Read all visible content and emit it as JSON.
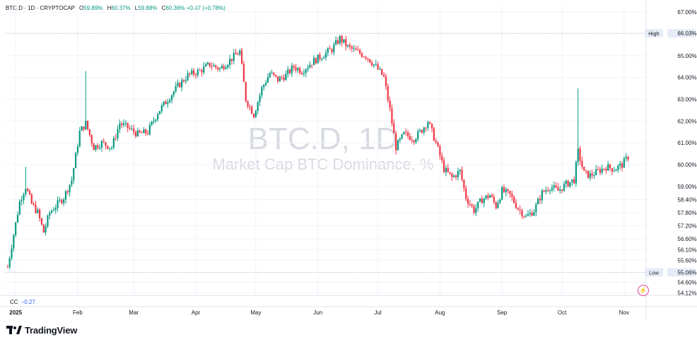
{
  "header": {
    "symbol": "BTC.D · 1D · CRYPTOCAP",
    "open_label": "O",
    "open": "59.89%",
    "high_label": "H",
    "high": "60.37%",
    "low_label": "L",
    "low": "59.88%",
    "close_label": "C",
    "close": "60.36%",
    "change": "+0.47 (+0.78%)"
  },
  "watermark": {
    "title": "BTC.D, 1D",
    "subtitle": "Market Cap BTC Dominance, %"
  },
  "indicator": {
    "name": "CC",
    "value": "−0.27"
  },
  "brand": {
    "name": "TradingView"
  },
  "colors": {
    "up": "#089981",
    "down": "#f23645",
    "grid": "#f0f3fa",
    "text": "#131722",
    "accent": "#2962ff"
  },
  "chart_data": {
    "type": "candlestick",
    "title": "BTC.D, 1D",
    "subtitle": "Market Cap BTC Dominance, %",
    "ylim": [
      54.0,
      67.3
    ],
    "y_ticks": [
      "67.00%",
      "66.03%",
      "65.00%",
      "64.00%",
      "63.00%",
      "62.00%",
      "61.00%",
      "60.00%",
      "59.00%",
      "58.40%",
      "57.80%",
      "57.20%",
      "56.60%",
      "56.10%",
      "55.60%",
      "55.06%",
      "54.60%",
      "54.12%"
    ],
    "x_ticks": [
      "2025",
      "Feb",
      "Mar",
      "Apr",
      "May",
      "Jun",
      "Jul",
      "Aug",
      "Sep",
      "Oct",
      "Nov"
    ],
    "high_marker": {
      "label": "High",
      "value": 66.03
    },
    "low_marker": {
      "label": "Low",
      "value": 55.06
    },
    "close_series": [
      {
        "date": "2024-12-28",
        "value": 55.3
      },
      {
        "date": "2024-12-31",
        "value": 56.8
      },
      {
        "date": "2025-01-03",
        "value": 58.3
      },
      {
        "date": "2025-01-06",
        "value": 59.0
      },
      {
        "date": "2025-01-09",
        "value": 58.2
      },
      {
        "date": "2025-01-12",
        "value": 57.8
      },
      {
        "date": "2025-01-15",
        "value": 56.9
      },
      {
        "date": "2025-01-18",
        "value": 57.8
      },
      {
        "date": "2025-01-21",
        "value": 58.1
      },
      {
        "date": "2025-01-25",
        "value": 58.5
      },
      {
        "date": "2025-01-29",
        "value": 59.3
      },
      {
        "date": "2025-02-02",
        "value": 61.5
      },
      {
        "date": "2025-02-05",
        "value": 61.9
      },
      {
        "date": "2025-02-09",
        "value": 60.8
      },
      {
        "date": "2025-02-13",
        "value": 61.0
      },
      {
        "date": "2025-02-18",
        "value": 60.8
      },
      {
        "date": "2025-02-22",
        "value": 61.9
      },
      {
        "date": "2025-02-26",
        "value": 61.7
      },
      {
        "date": "2025-03-03",
        "value": 61.4
      },
      {
        "date": "2025-03-08",
        "value": 61.5
      },
      {
        "date": "2025-03-13",
        "value": 62.4
      },
      {
        "date": "2025-03-18",
        "value": 63.0
      },
      {
        "date": "2025-03-23",
        "value": 63.6
      },
      {
        "date": "2025-03-28",
        "value": 64.1
      },
      {
        "date": "2025-04-03",
        "value": 64.3
      },
      {
        "date": "2025-04-08",
        "value": 64.6
      },
      {
        "date": "2025-04-13",
        "value": 64.4
      },
      {
        "date": "2025-04-18",
        "value": 64.8
      },
      {
        "date": "2025-04-23",
        "value": 65.2
      },
      {
        "date": "2025-04-26",
        "value": 63.0
      },
      {
        "date": "2025-04-30",
        "value": 62.3
      },
      {
        "date": "2025-05-04",
        "value": 63.5
      },
      {
        "date": "2025-05-08",
        "value": 64.2
      },
      {
        "date": "2025-05-12",
        "value": 63.9
      },
      {
        "date": "2025-05-16",
        "value": 64.1
      },
      {
        "date": "2025-05-20",
        "value": 64.5
      },
      {
        "date": "2025-05-24",
        "value": 64.3
      },
      {
        "date": "2025-05-29",
        "value": 64.7
      },
      {
        "date": "2025-06-03",
        "value": 65.0
      },
      {
        "date": "2025-06-08",
        "value": 65.3
      },
      {
        "date": "2025-06-12",
        "value": 65.8
      },
      {
        "date": "2025-06-16",
        "value": 65.4
      },
      {
        "date": "2025-06-20",
        "value": 65.2
      },
      {
        "date": "2025-06-25",
        "value": 65.0
      },
      {
        "date": "2025-06-30",
        "value": 64.5
      },
      {
        "date": "2025-07-04",
        "value": 64.0
      },
      {
        "date": "2025-07-07",
        "value": 62.5
      },
      {
        "date": "2025-07-10",
        "value": 60.8
      },
      {
        "date": "2025-07-14",
        "value": 61.4
      },
      {
        "date": "2025-07-19",
        "value": 61.2
      },
      {
        "date": "2025-07-23",
        "value": 61.6
      },
      {
        "date": "2025-07-26",
        "value": 62.0
      },
      {
        "date": "2025-07-30",
        "value": 61.0
      },
      {
        "date": "2025-08-03",
        "value": 59.8
      },
      {
        "date": "2025-08-07",
        "value": 59.4
      },
      {
        "date": "2025-08-11",
        "value": 59.7
      },
      {
        "date": "2025-08-14",
        "value": 58.5
      },
      {
        "date": "2025-08-18",
        "value": 57.9
      },
      {
        "date": "2025-08-22",
        "value": 58.4
      },
      {
        "date": "2025-08-26",
        "value": 58.6
      },
      {
        "date": "2025-08-29",
        "value": 58.1
      },
      {
        "date": "2025-09-01",
        "value": 58.8
      },
      {
        "date": "2025-09-05",
        "value": 58.6
      },
      {
        "date": "2025-09-09",
        "value": 58.0
      },
      {
        "date": "2025-09-13",
        "value": 57.6
      },
      {
        "date": "2025-09-17",
        "value": 57.9
      },
      {
        "date": "2025-09-21",
        "value": 58.7
      },
      {
        "date": "2025-09-25",
        "value": 59.0
      },
      {
        "date": "2025-09-29",
        "value": 58.8
      },
      {
        "date": "2025-10-03",
        "value": 59.1
      },
      {
        "date": "2025-10-07",
        "value": 59.3
      },
      {
        "date": "2025-10-09",
        "value": 60.6
      },
      {
        "date": "2025-10-12",
        "value": 59.6
      },
      {
        "date": "2025-10-15",
        "value": 59.5
      },
      {
        "date": "2025-10-19",
        "value": 59.7
      },
      {
        "date": "2025-10-23",
        "value": 59.9
      },
      {
        "date": "2025-10-27",
        "value": 59.8
      },
      {
        "date": "2025-10-31",
        "value": 60.0
      },
      {
        "date": "2025-11-03",
        "value": 60.36
      }
    ],
    "spikes": [
      {
        "date": "2025-02-05",
        "high": 64.3
      },
      {
        "date": "2025-10-09",
        "high": 63.5
      },
      {
        "date": "2025-01-06",
        "high": 59.9
      }
    ]
  }
}
